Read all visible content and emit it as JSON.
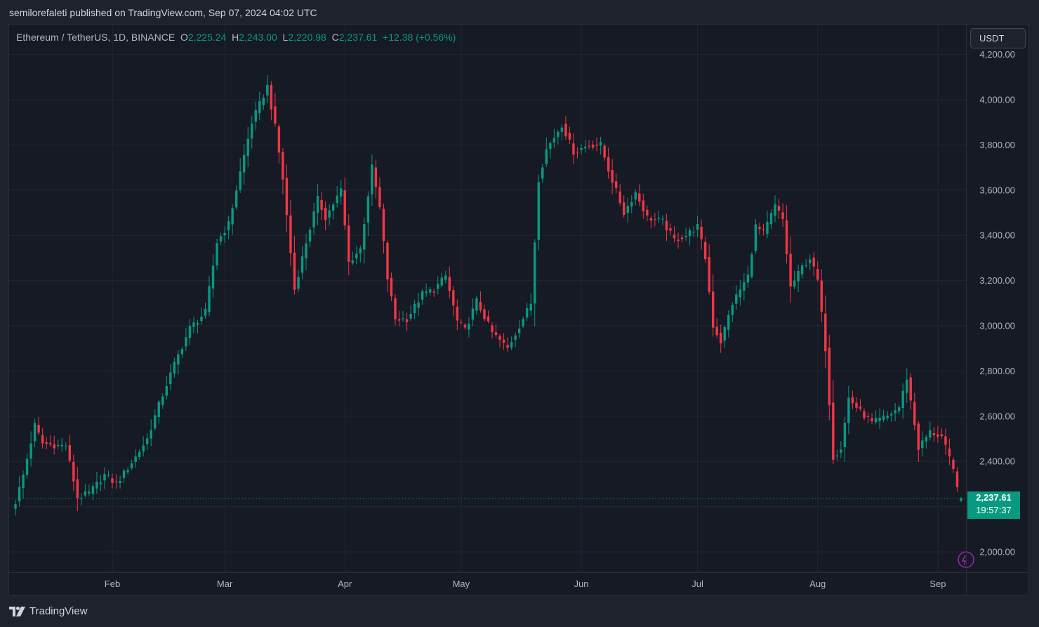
{
  "header": {
    "published_caption": "semilorefaleti published on TradingView.com, Sep 07, 2024 04:02 UTC"
  },
  "legend": {
    "symbol": "Ethereum / TetherUS, 1D, BINANCE",
    "open_label": "O",
    "open": "2,225.24",
    "high_label": "H",
    "high": "2,243.00",
    "low_label": "L",
    "low": "2,220.98",
    "close_label": "C",
    "close": "2,237.61",
    "change": "+12.38 (+0.56%)"
  },
  "currency_button": {
    "label": "USDT"
  },
  "last_price": {
    "price": "2,237.61",
    "countdown": "19:57:37"
  },
  "footer": {
    "brand": "TradingView"
  },
  "colors": {
    "up": "#089981",
    "down": "#f23645",
    "background": "#161a25",
    "grid": "#232632",
    "axis_text": "#b2b5be",
    "alert_icon": "#9c27b0"
  },
  "chart_data": {
    "type": "candlestick",
    "symbol": "ETH/USDT",
    "interval": "1D",
    "x_labels": [
      "Feb",
      "Mar",
      "Apr",
      "May",
      "Jun",
      "Jul",
      "Aug",
      "Sep"
    ],
    "x_label_dates": [
      "2024-02-01",
      "2024-03-01",
      "2024-04-01",
      "2024-05-01",
      "2024-06-01",
      "2024-07-01",
      "2024-08-01",
      "2024-09-01"
    ],
    "y_ticks": [
      2000,
      2200,
      2400,
      2600,
      2800,
      3000,
      3200,
      3400,
      3600,
      3800,
      4000,
      4200
    ],
    "y_tick_labels": [
      "2,000.00",
      "2,200.00",
      "2,400.00",
      "2,600.00",
      "2,800.00",
      "3,000.00",
      "3,200.00",
      "3,400.00",
      "3,600.00",
      "3,800.00",
      "4,000.00",
      "4,200.00"
    ],
    "ylim": [
      1920,
      4300
    ],
    "date_range": [
      "2024-01-07",
      "2024-09-07"
    ],
    "daily_close_anchors": [
      [
        "2024-01-07",
        2220
      ],
      [
        "2024-01-09",
        2340
      ],
      [
        "2024-01-12",
        2560
      ],
      [
        "2024-01-14",
        2480
      ],
      [
        "2024-01-18",
        2470
      ],
      [
        "2024-01-20",
        2470
      ],
      [
        "2024-01-23",
        2240
      ],
      [
        "2024-01-26",
        2260
      ],
      [
        "2024-01-30",
        2340
      ],
      [
        "2024-02-02",
        2300
      ],
      [
        "2024-02-07",
        2420
      ],
      [
        "2024-02-10",
        2500
      ],
      [
        "2024-02-13",
        2650
      ],
      [
        "2024-02-17",
        2830
      ],
      [
        "2024-02-21",
        2990
      ],
      [
        "2024-02-25",
        3060
      ],
      [
        "2024-02-28",
        3370
      ],
      [
        "2024-03-02",
        3450
      ],
      [
        "2024-03-05",
        3680
      ],
      [
        "2024-03-08",
        3900
      ],
      [
        "2024-03-12",
        4060
      ],
      [
        "2024-03-14",
        3880
      ],
      [
        "2024-03-16",
        3650
      ],
      [
        "2024-03-19",
        3160
      ],
      [
        "2024-03-22",
        3370
      ],
      [
        "2024-03-25",
        3560
      ],
      [
        "2024-03-27",
        3480
      ],
      [
        "2024-03-31",
        3600
      ],
      [
        "2024-04-02",
        3280
      ],
      [
        "2024-04-05",
        3340
      ],
      [
        "2024-04-08",
        3700
      ],
      [
        "2024-04-10",
        3520
      ],
      [
        "2024-04-12",
        3210
      ],
      [
        "2024-04-14",
        3030
      ],
      [
        "2024-04-17",
        3030
      ],
      [
        "2024-04-21",
        3140
      ],
      [
        "2024-04-24",
        3160
      ],
      [
        "2024-04-27",
        3220
      ],
      [
        "2024-04-30",
        3020
      ],
      [
        "2024-05-02",
        2980
      ],
      [
        "2024-05-05",
        3110
      ],
      [
        "2024-05-09",
        2970
      ],
      [
        "2024-05-13",
        2900
      ],
      [
        "2024-05-16",
        3000
      ],
      [
        "2024-05-19",
        3100
      ],
      [
        "2024-05-21",
        3650
      ],
      [
        "2024-05-23",
        3780
      ],
      [
        "2024-05-27",
        3890
      ],
      [
        "2024-05-30",
        3770
      ],
      [
        "2024-06-03",
        3800
      ],
      [
        "2024-06-06",
        3800
      ],
      [
        "2024-06-08",
        3690
      ],
      [
        "2024-06-12",
        3500
      ],
      [
        "2024-06-15",
        3590
      ],
      [
        "2024-06-18",
        3480
      ],
      [
        "2024-06-22",
        3460
      ],
      [
        "2024-06-25",
        3380
      ],
      [
        "2024-06-28",
        3400
      ],
      [
        "2024-07-01",
        3440
      ],
      [
        "2024-07-03",
        3300
      ],
      [
        "2024-07-05",
        3000
      ],
      [
        "2024-07-07",
        2930
      ],
      [
        "2024-07-10",
        3100
      ],
      [
        "2024-07-14",
        3220
      ],
      [
        "2024-07-16",
        3440
      ],
      [
        "2024-07-18",
        3410
      ],
      [
        "2024-07-21",
        3530
      ],
      [
        "2024-07-23",
        3470
      ],
      [
        "2024-07-25",
        3170
      ],
      [
        "2024-07-28",
        3260
      ],
      [
        "2024-07-30",
        3300
      ],
      [
        "2024-08-01",
        3200
      ],
      [
        "2024-08-03",
        2900
      ],
      [
        "2024-08-05",
        2420
      ],
      [
        "2024-08-07",
        2460
      ],
      [
        "2024-08-09",
        2680
      ],
      [
        "2024-08-12",
        2620
      ],
      [
        "2024-08-15",
        2570
      ],
      [
        "2024-08-19",
        2600
      ],
      [
        "2024-08-22",
        2640
      ],
      [
        "2024-08-24",
        2770
      ],
      [
        "2024-08-27",
        2460
      ],
      [
        "2024-08-30",
        2530
      ],
      [
        "2024-09-02",
        2510
      ],
      [
        "2024-09-05",
        2360
      ],
      [
        "2024-09-07",
        2237.61
      ]
    ],
    "last_candle": {
      "date": "2024-09-07",
      "open": 2225.24,
      "high": 2243.0,
      "low": 2220.98,
      "close": 2237.61,
      "change": 12.38,
      "change_pct": 0.56
    },
    "grid": true,
    "price_scale_position": "right"
  }
}
